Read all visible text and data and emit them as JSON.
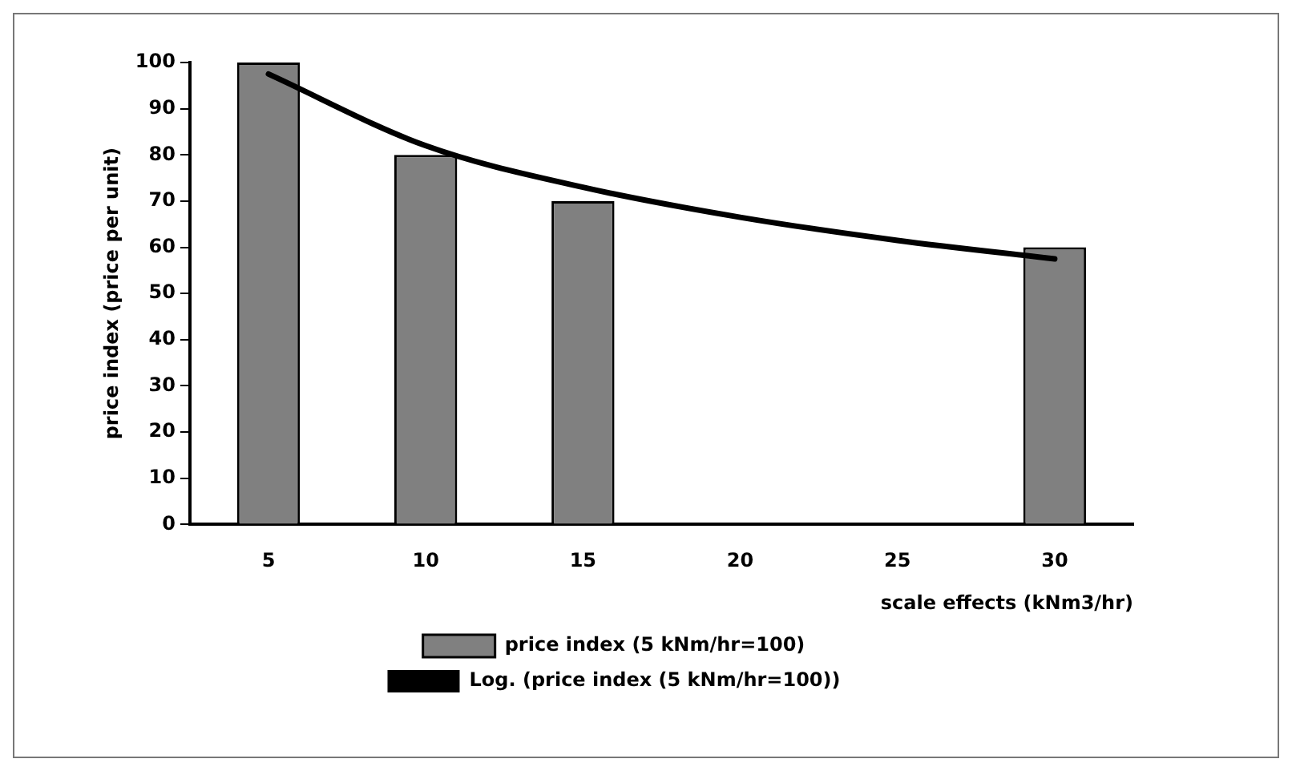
{
  "chart_data": {
    "type": "bar",
    "xlabel": "scale effects (kNm3/hr)",
    "ylabel": "price index (price per unit)",
    "categories": [
      "5",
      "10",
      "15",
      "20",
      "25",
      "30"
    ],
    "series": [
      {
        "name": "price index (5 kNm/hr=100)",
        "color": "#808080",
        "values": [
          100,
          80,
          70,
          null,
          null,
          60
        ]
      },
      {
        "name": "Log. (price index (5 kNm/hr=100))",
        "type": "line",
        "color": "#000000",
        "values": [
          97.5,
          82,
          73,
          66.5,
          61.5,
          57.5
        ]
      }
    ],
    "ylim": [
      0,
      100
    ],
    "yticks": [
      0,
      10,
      20,
      30,
      40,
      50,
      60,
      70,
      80,
      90,
      100
    ],
    "grid": false,
    "legend": "bottom",
    "marker": "none",
    "line_style": "solid"
  }
}
